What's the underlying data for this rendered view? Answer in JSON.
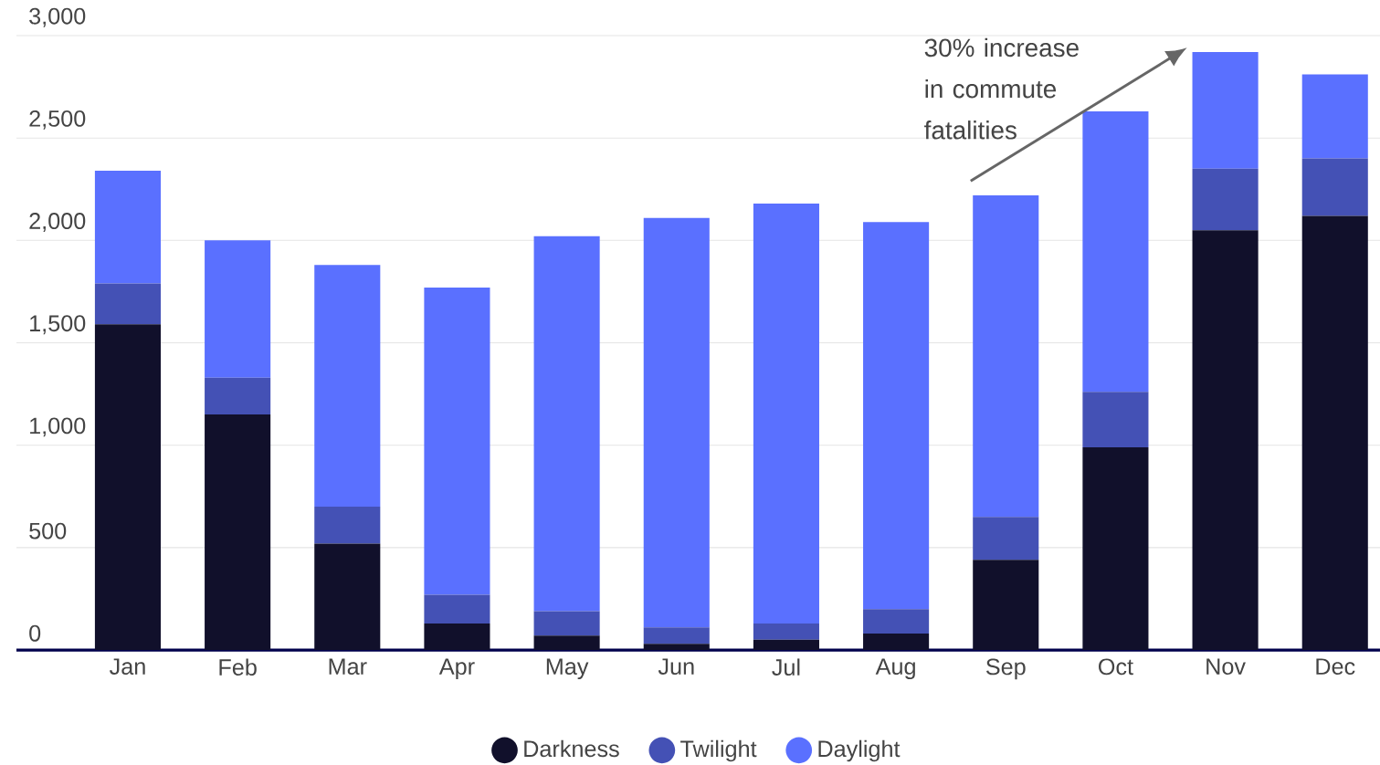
{
  "chart_data": {
    "type": "bar",
    "stacked": true,
    "categories": [
      "Jan",
      "Feb",
      "Mar",
      "Apr",
      "May",
      "Jun",
      "Jul",
      "Aug",
      "Sep",
      "Oct",
      "Nov",
      "Dec"
    ],
    "series": [
      {
        "name": "Darkness",
        "color": "#11102b",
        "values": [
          1590,
          1150,
          520,
          130,
          70,
          30,
          50,
          80,
          440,
          990,
          2050,
          2120
        ]
      },
      {
        "name": "Twilight",
        "color": "#4451b5",
        "values": [
          200,
          180,
          180,
          140,
          120,
          80,
          80,
          120,
          210,
          270,
          300,
          280
        ]
      },
      {
        "name": "Daylight",
        "color": "#5a70ff",
        "values": [
          550,
          670,
          1180,
          1500,
          1830,
          2000,
          2050,
          1890,
          1570,
          1370,
          570,
          410
        ]
      }
    ],
    "ylim": [
      0,
      3000
    ],
    "yticks": [
      0,
      500,
      {
        "value": 1000,
        "label": "1,000"
      },
      {
        "value": 1500,
        "label": "1,500"
      },
      {
        "value": 2000,
        "label": "2,000"
      },
      {
        "value": 2500,
        "label": "2,500"
      },
      {
        "value": 3000,
        "label": "3,000"
      }
    ],
    "grid": "y",
    "legend": "bottom",
    "annotations": [
      "30% increase in commute fatalities"
    ]
  }
}
